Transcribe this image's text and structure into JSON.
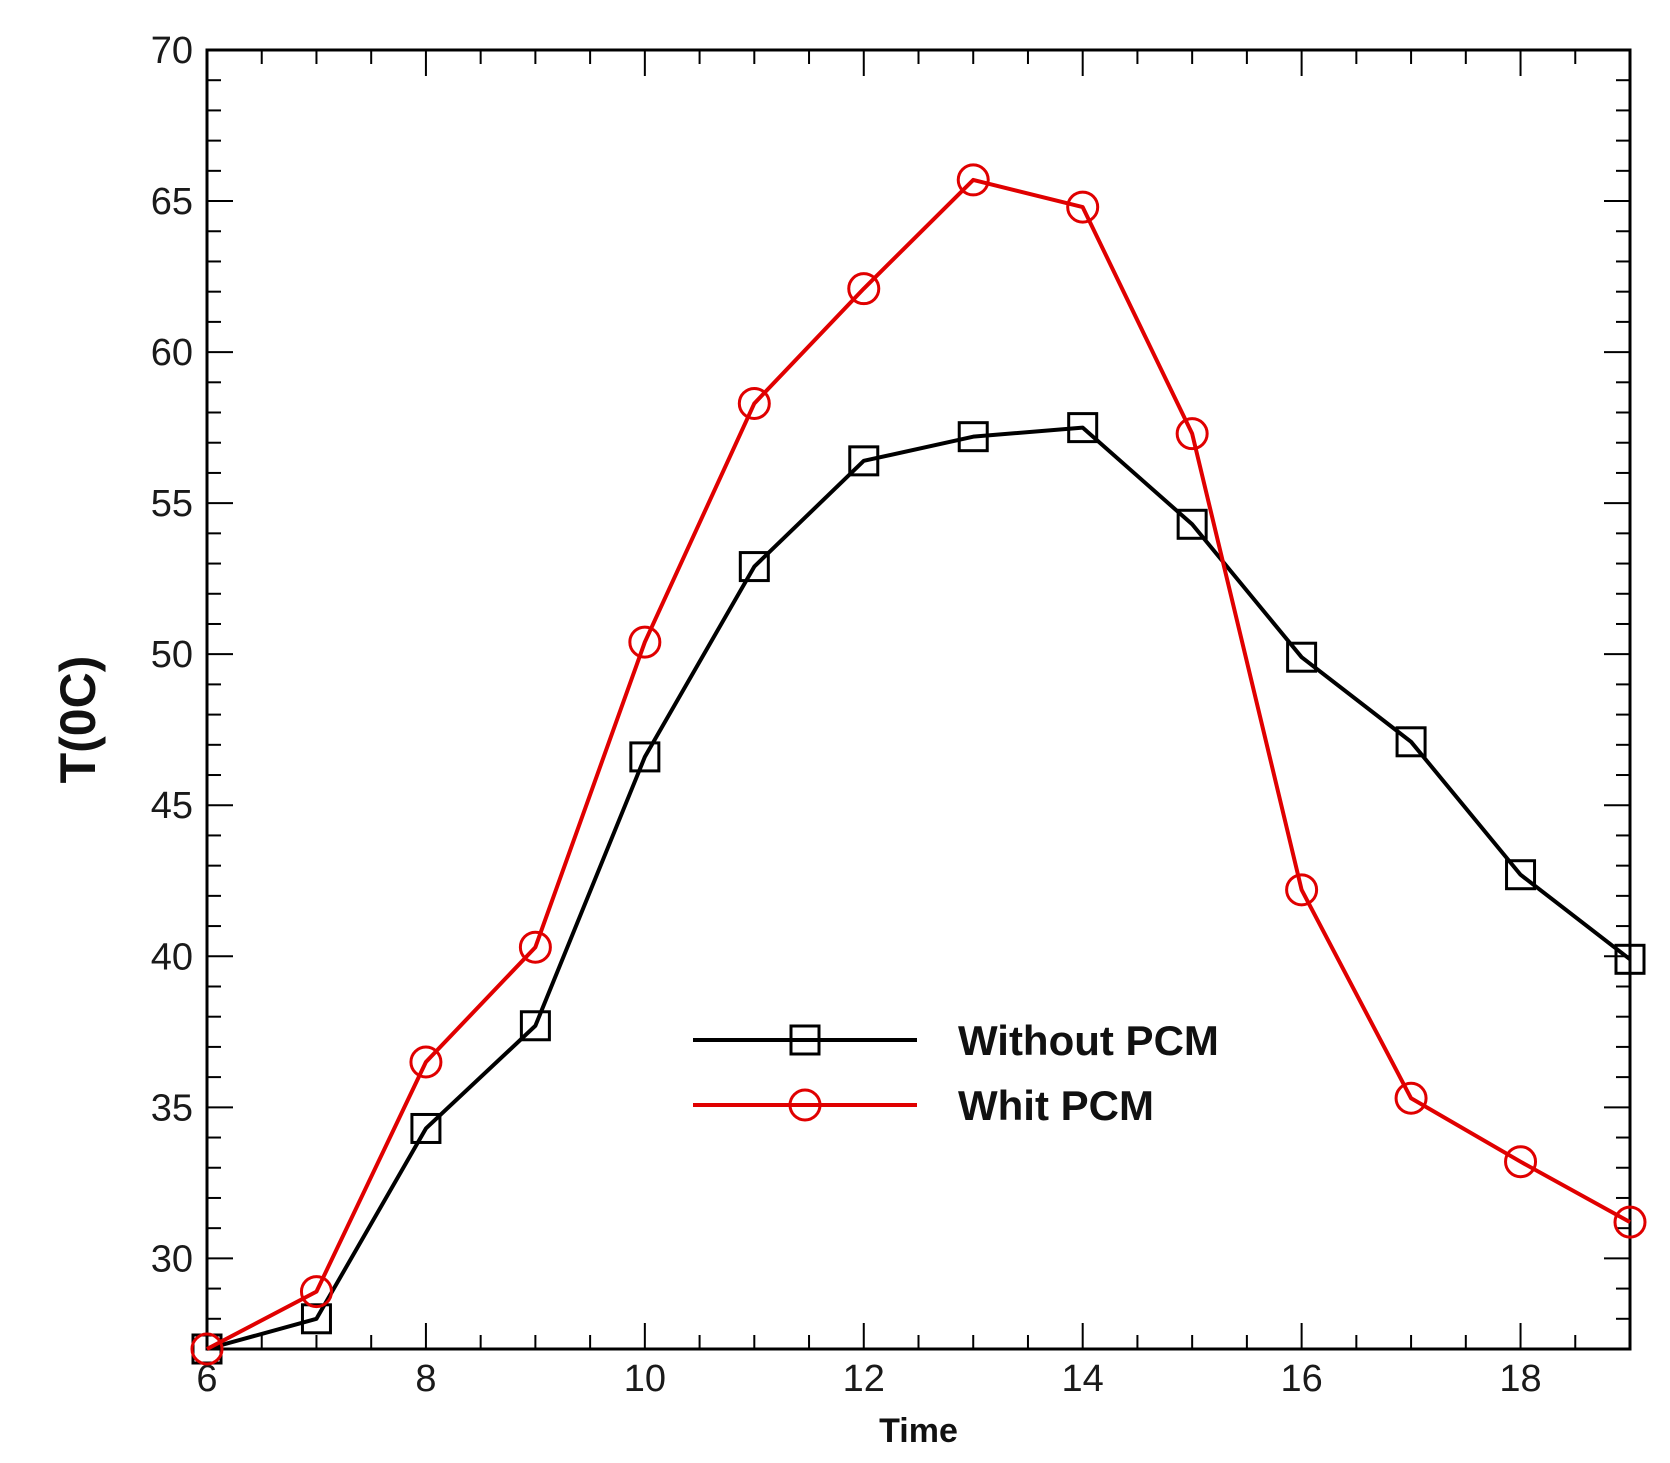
{
  "chart_data": {
    "type": "line",
    "title": "",
    "xlabel": "Time",
    "ylabel": "T(0C)",
    "xlim": [
      6,
      19
    ],
    "ylim": [
      27,
      70
    ],
    "x_ticks": [
      6,
      8,
      10,
      12,
      14,
      16,
      18
    ],
    "y_ticks": [
      30,
      35,
      40,
      45,
      50,
      55,
      60,
      65,
      70
    ],
    "grid": false,
    "legend_position": "center-right",
    "x": [
      6,
      7,
      8,
      9,
      10,
      11,
      12,
      13,
      14,
      15,
      16,
      17,
      18,
      19
    ],
    "series": [
      {
        "name": "Without PCM",
        "color": "#000000",
        "marker": "square",
        "values": [
          27.0,
          28.0,
          34.3,
          37.7,
          46.6,
          52.9,
          56.4,
          57.2,
          57.5,
          54.3,
          49.9,
          47.1,
          42.7,
          39.9
        ]
      },
      {
        "name": "Whit PCM",
        "color": "#e00000",
        "marker": "circle",
        "values": [
          27.0,
          28.9,
          36.5,
          40.3,
          50.4,
          58.3,
          62.1,
          65.7,
          64.8,
          57.3,
          42.2,
          35.3,
          33.2,
          31.2
        ]
      }
    ]
  }
}
